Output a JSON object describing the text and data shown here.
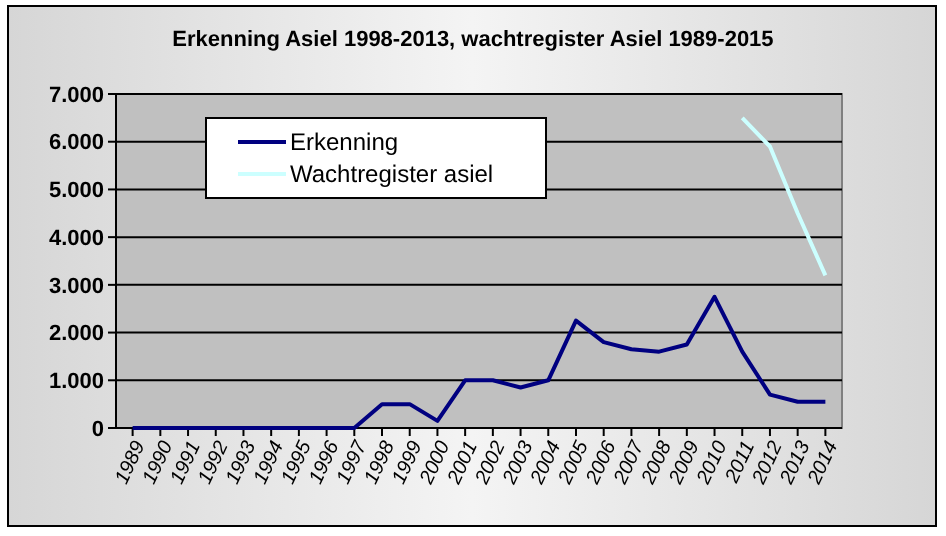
{
  "chart_data": {
    "type": "line",
    "title": "Erkenning Asiel 1998-2013, wachtregister Asiel 1989-2015",
    "categories": [
      "1989",
      "1990",
      "1991",
      "1992",
      "1993",
      "1994",
      "1995",
      "1996",
      "1997",
      "1998",
      "1999",
      "2000",
      "2001",
      "2002",
      "2003",
      "2004",
      "2005",
      "2006",
      "2007",
      "2008",
      "2009",
      "2010",
      "2011",
      "2012",
      "2013",
      "2014"
    ],
    "series": [
      {
        "name": "Erkenning",
        "color": "#000080",
        "values": [
          0,
          0,
          0,
          0,
          0,
          0,
          0,
          0,
          0,
          500,
          500,
          150,
          1000,
          1000,
          850,
          1000,
          2250,
          1800,
          1650,
          1600,
          1750,
          2750,
          1600,
          700,
          550,
          550
        ]
      },
      {
        "name": "Wachtregister asiel",
        "color": "#ccffff",
        "values": [
          null,
          null,
          null,
          null,
          null,
          null,
          null,
          null,
          null,
          null,
          null,
          null,
          null,
          null,
          null,
          null,
          null,
          null,
          null,
          null,
          null,
          null,
          6500,
          5900,
          4500,
          3200
        ]
      }
    ],
    "ylim": [
      0,
      7000
    ],
    "yticks": [
      0,
      {
        "value": 1000,
        "label": "1.000"
      },
      {
        "value": 2000,
        "label": "2.000"
      },
      {
        "value": 3000,
        "label": "3.000"
      },
      {
        "value": 4000,
        "label": "4.000"
      },
      {
        "value": 5000,
        "label": "5.000"
      },
      {
        "value": 6000,
        "label": "6.000"
      },
      {
        "value": 7000,
        "label": "7.000"
      }
    ],
    "grid": "y",
    "legend": "top left",
    "marker": "none"
  }
}
